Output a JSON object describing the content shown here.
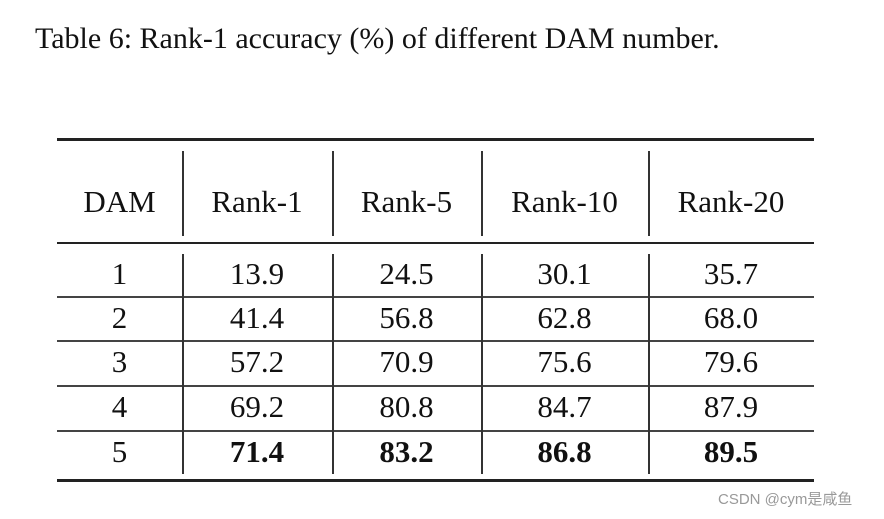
{
  "caption": "Table 6: Rank-1 accuracy (%) of different DAM number.",
  "table": {
    "headers": [
      "DAM",
      "Rank-1",
      "Rank-5",
      "Rank-10",
      "Rank-20"
    ],
    "rows": [
      [
        "1",
        "13.9",
        "24.5",
        "30.1",
        "35.7"
      ],
      [
        "2",
        "41.4",
        "56.8",
        "62.8",
        "68.0"
      ],
      [
        "3",
        "57.2",
        "70.9",
        "75.6",
        "79.6"
      ],
      [
        "4",
        "69.2",
        "80.8",
        "84.7",
        "87.9"
      ],
      [
        "5",
        "71.4",
        "83.2",
        "86.8",
        "89.5"
      ]
    ],
    "bold_row": 4
  },
  "watermark": "CSDN @cym是咸鱼"
}
